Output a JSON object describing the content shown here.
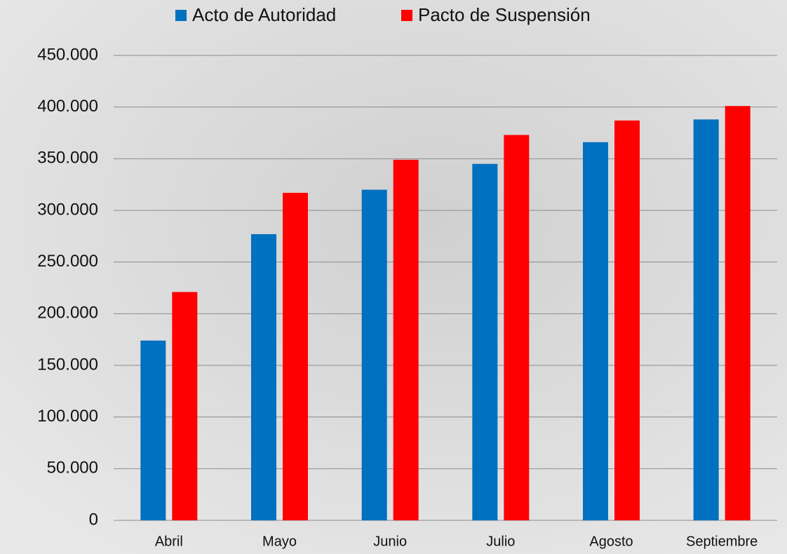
{
  "chart_data": {
    "type": "bar",
    "categories": [
      "Abril",
      "Mayo",
      "Junio",
      "Julio",
      "Agosto",
      "Septiembre"
    ],
    "series": [
      {
        "name": "Acto de Autoridad",
        "color": "#0070c0",
        "values": [
          174000,
          277000,
          320000,
          345000,
          366000,
          388000
        ]
      },
      {
        "name": "Pacto de Suspensión",
        "color": "#ff0000",
        "values": [
          221000,
          317000,
          349000,
          373000,
          387000,
          401000
        ]
      }
    ],
    "ylim": [
      0,
      450000
    ],
    "yticks": [
      0,
      {
        "value": 50000,
        "label": "50.000"
      },
      {
        "value": 100000,
        "label": "100.000"
      },
      {
        "value": 150000,
        "label": "150.000"
      },
      {
        "value": 200000,
        "label": "200.000"
      },
      {
        "value": 250000,
        "label": "250.000"
      },
      {
        "value": 300000,
        "label": "300.000"
      },
      {
        "value": 350000,
        "label": "350.000"
      },
      {
        "value": 400000,
        "label": "400.000"
      },
      {
        "value": 450000,
        "label": "450.000"
      }
    ],
    "grid": true,
    "legend": "top"
  }
}
